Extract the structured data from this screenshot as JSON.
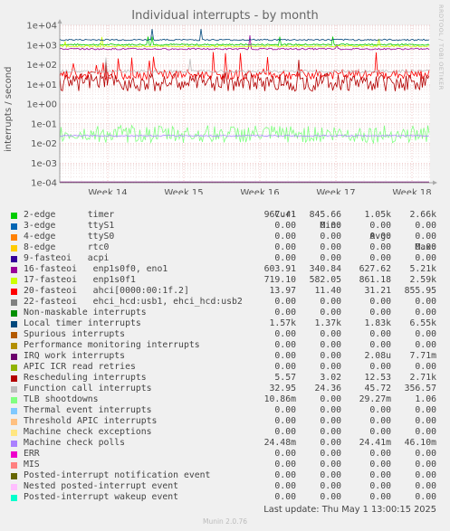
{
  "chart_data": {
    "type": "line",
    "title": "Individual interrupts - by month",
    "ylabel": "interrupts / second",
    "yscale": "log",
    "ylim": [
      0.0001,
      10000
    ],
    "yticks": [
      "1e-04",
      "1e-03",
      "1e-02",
      "1e-01",
      "1e+00",
      "1e+01",
      "1e+02",
      "1e+03",
      "1e+04"
    ],
    "xticks": [
      "Week 14",
      "Week 15",
      "Week 16",
      "Week 17",
      "Week 18"
    ],
    "columns": [
      "Cur:",
      "Min:",
      "Avg:",
      "Max:"
    ],
    "series": [
      {
        "name": "2-edge      timer",
        "color": "#00cc00",
        "cur": "967.41",
        "min": "845.66",
        "avg": "1.05k",
        "max": "2.66k"
      },
      {
        "name": "3-edge      ttyS1",
        "color": "#0066b3",
        "cur": "0.00",
        "min": "0.00",
        "avg": "0.00",
        "max": "0.00"
      },
      {
        "name": "4-edge      ttyS0",
        "color": "#ff8000",
        "cur": "0.00",
        "min": "0.00",
        "avg": "0.00",
        "max": "0.00"
      },
      {
        "name": "8-edge      rtc0",
        "color": "#ffcc00",
        "cur": "0.00",
        "min": "0.00",
        "avg": "0.00",
        "max": "0.00"
      },
      {
        "name": "9-fasteoi   acpi",
        "color": "#330099",
        "cur": "0.00",
        "min": "0.00",
        "avg": "0.00",
        "max": "0.00"
      },
      {
        "name": "16-fasteoi   enp1s0f0, eno1",
        "color": "#990099",
        "cur": "603.91",
        "min": "340.84",
        "avg": "627.62",
        "max": "5.21k"
      },
      {
        "name": "17-fasteoi   enp1s0f1",
        "color": "#ccff00",
        "cur": "719.10",
        "min": "582.05",
        "avg": "861.18",
        "max": "2.59k"
      },
      {
        "name": "20-fasteoi   ahci[0000:00:1f.2]",
        "color": "#ff0000",
        "cur": "13.97",
        "min": "11.40",
        "avg": "31.21",
        "max": "855.95"
      },
      {
        "name": "22-fasteoi   ehci_hcd:usb1, ehci_hcd:usb2",
        "color": "#808080",
        "cur": "0.00",
        "min": "0.00",
        "avg": "0.00",
        "max": "0.00"
      },
      {
        "name": "Non-maskable interrupts",
        "color": "#008f00",
        "cur": "0.00",
        "min": "0.00",
        "avg": "0.00",
        "max": "0.00"
      },
      {
        "name": "Local timer interrupts",
        "color": "#00487d",
        "cur": "1.57k",
        "min": "1.37k",
        "avg": "1.83k",
        "max": "6.55k"
      },
      {
        "name": "Spurious interrupts",
        "color": "#b35a00",
        "cur": "0.00",
        "min": "0.00",
        "avg": "0.00",
        "max": "0.00"
      },
      {
        "name": "Performance monitoring interrupts",
        "color": "#b38f00",
        "cur": "0.00",
        "min": "0.00",
        "avg": "0.00",
        "max": "0.00"
      },
      {
        "name": "IRQ work interrupts",
        "color": "#6b006b",
        "cur": "0.00",
        "min": "0.00",
        "avg": "2.08u",
        "max": "7.71m"
      },
      {
        "name": "APIC ICR read retries",
        "color": "#8fb300",
        "cur": "0.00",
        "min": "0.00",
        "avg": "0.00",
        "max": "0.00"
      },
      {
        "name": "Rescheduling interrupts",
        "color": "#b30000",
        "cur": "5.57",
        "min": "3.02",
        "avg": "12.53",
        "max": "2.71k"
      },
      {
        "name": "Function call interrupts",
        "color": "#bebebe",
        "cur": "32.95",
        "min": "24.36",
        "avg": "45.72",
        "max": "356.57"
      },
      {
        "name": "TLB shootdowns",
        "color": "#80ff80",
        "cur": "10.86m",
        "min": "0.00",
        "avg": "29.27m",
        "max": "1.06"
      },
      {
        "name": "Thermal event interrupts",
        "color": "#80c9ff",
        "cur": "0.00",
        "min": "0.00",
        "avg": "0.00",
        "max": "0.00"
      },
      {
        "name": "Threshold APIC interrupts",
        "color": "#ffc080",
        "cur": "0.00",
        "min": "0.00",
        "avg": "0.00",
        "max": "0.00"
      },
      {
        "name": "Machine check exceptions",
        "color": "#ffe680",
        "cur": "0.00",
        "min": "0.00",
        "avg": "0.00",
        "max": "0.00"
      },
      {
        "name": "Machine check polls",
        "color": "#aa80ff",
        "cur": "24.48m",
        "min": "0.00",
        "avg": "24.41m",
        "max": "46.10m"
      },
      {
        "name": "ERR",
        "color": "#ee00cc",
        "cur": "0.00",
        "min": "0.00",
        "avg": "0.00",
        "max": "0.00"
      },
      {
        "name": "MIS",
        "color": "#ff8080",
        "cur": "0.00",
        "min": "0.00",
        "avg": "0.00",
        "max": "0.00"
      },
      {
        "name": "Posted-interrupt notification event",
        "color": "#666600",
        "cur": "0.00",
        "min": "0.00",
        "avg": "0.00",
        "max": "0.00"
      },
      {
        "name": "Nested posted-interrupt event",
        "color": "#ffbfff",
        "cur": "0.00",
        "min": "0.00",
        "avg": "0.00",
        "max": "0.00"
      },
      {
        "name": "Posted-interrupt wakeup event",
        "color": "#00ffcc",
        "cur": "0.00",
        "min": "0.00",
        "avg": "0.00",
        "max": "0.00"
      }
    ]
  },
  "side_label": "RRDTOOL / TOBI OETIKER",
  "last_update": "Last update: Thu May  1 13:00:15 2025",
  "footer": "Munin 2.0.76"
}
